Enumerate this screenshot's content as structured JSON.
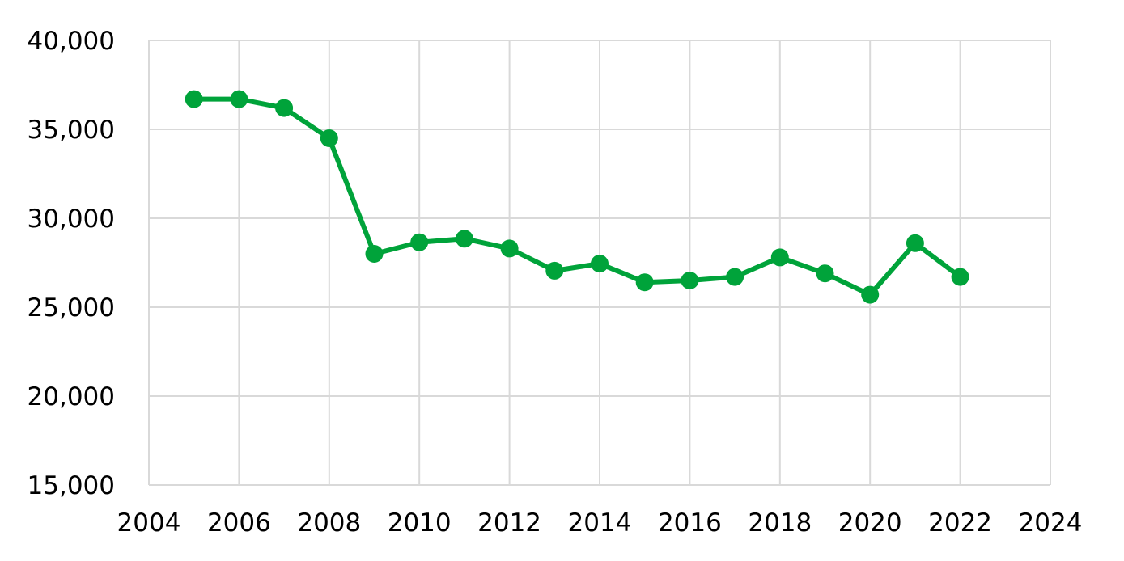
{
  "colors": {
    "series": "#00a33a",
    "grid": "#d9d9d9",
    "text": "#000000"
  },
  "chart_data": {
    "type": "line",
    "title": "",
    "xlabel": "",
    "ylabel": "",
    "xlim": [
      2004,
      2024
    ],
    "ylim": [
      15000,
      40000
    ],
    "grid": true,
    "legend": "none",
    "marker": "circle",
    "x_ticks": [
      "2004",
      "2006",
      "2008",
      "2010",
      "2012",
      "2014",
      "2016",
      "2018",
      "2020",
      "2022",
      "2024"
    ],
    "y_ticks": [
      "15,000",
      "20,000",
      "25,000",
      "30,000",
      "35,000",
      "40,000"
    ],
    "series": [
      {
        "x": [
          2005,
          2006,
          2007,
          2008,
          2009,
          2010,
          2011,
          2012,
          2013,
          2014,
          2015,
          2016,
          2017,
          2018,
          2019,
          2020,
          2021,
          2022
        ],
        "y": [
          36700,
          36700,
          36200,
          34500,
          28000,
          28650,
          28850,
          28300,
          27050,
          27450,
          26400,
          26500,
          26700,
          27800,
          26900,
          25700,
          28600,
          26700
        ]
      }
    ]
  }
}
